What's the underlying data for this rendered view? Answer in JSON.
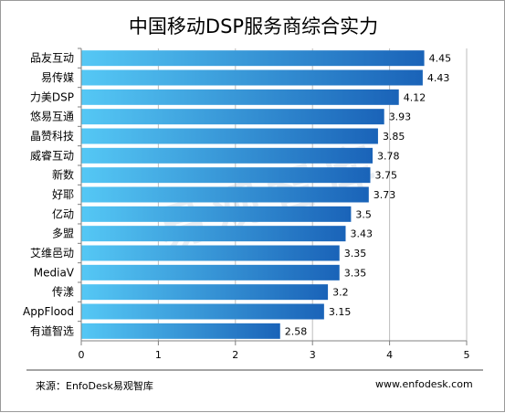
{
  "chart_data": {
    "type": "bar",
    "orientation": "horizontal",
    "title": "中国移动DSP服务商综合实力",
    "categories": [
      "品友互动",
      "易传媒",
      "力美DSP",
      "悠易互通",
      "晶赞科技",
      "威睿互动",
      "新数",
      "好耶",
      "亿动",
      "多盟",
      "艾维邑动",
      "MediaV",
      "传漾",
      "AppFlood",
      "有道智选"
    ],
    "values": [
      4.45,
      4.43,
      4.12,
      3.93,
      3.85,
      3.78,
      3.75,
      3.73,
      3.5,
      3.43,
      3.35,
      3.35,
      3.2,
      3.15,
      2.58
    ],
    "value_labels": [
      "4.45",
      "4.43",
      "4.12",
      "3.93",
      "3.85",
      "3.78",
      "3.75",
      "3.73",
      "3.5",
      "3.43",
      "3.35",
      "3.35",
      "3.2",
      "3.15",
      "2.58"
    ],
    "xlim": [
      0,
      5
    ],
    "xticks": [
      "0",
      "1",
      "2",
      "3",
      "4",
      "5"
    ],
    "grid": "vertical",
    "bar_gradient": [
      "#55c8f5",
      "#1a63b8"
    ],
    "watermark": "易观智库"
  },
  "footer": {
    "source": "来源：EnfoDesk易观智库",
    "website": "www.enfodesk.com"
  }
}
